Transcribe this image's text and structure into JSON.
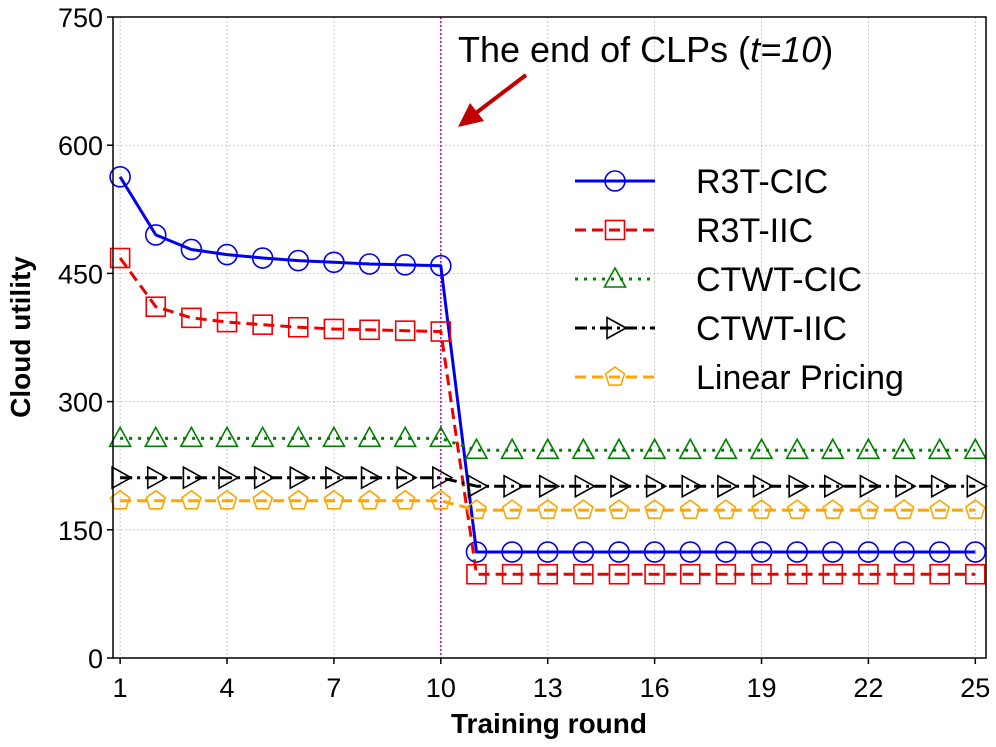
{
  "chart_data": {
    "type": "line",
    "title": "",
    "xlabel": "Training round",
    "ylabel": "Cloud utility",
    "xlim": [
      0.8,
      25.3
    ],
    "ylim": [
      0,
      750
    ],
    "xticks": [
      1,
      4,
      7,
      10,
      13,
      16,
      19,
      22,
      25
    ],
    "yticks": [
      0,
      150,
      300,
      450,
      600,
      750
    ],
    "grid": true,
    "legend_position": "right",
    "x": [
      1,
      2,
      3,
      4,
      5,
      6,
      7,
      8,
      9,
      10,
      11,
      12,
      13,
      14,
      15,
      16,
      17,
      18,
      19,
      20,
      21,
      22,
      23,
      24,
      25
    ],
    "series": [
      {
        "name": "R3T-CIC",
        "color": "#0000ee",
        "dash": "solid",
        "marker": "circle",
        "values": [
          563,
          495,
          478,
          472,
          468,
          465,
          463,
          461,
          460,
          459,
          124,
          124,
          124,
          124,
          124,
          124,
          124,
          124,
          124,
          124,
          124,
          124,
          124,
          124,
          124
        ]
      },
      {
        "name": "R3T-IIC",
        "color": "#ee0000",
        "dash": "dashed",
        "marker": "square",
        "values": [
          468,
          411,
          398,
          393,
          390,
          387,
          385,
          384,
          383,
          382,
          98,
          98,
          98,
          98,
          98,
          98,
          98,
          98,
          98,
          98,
          98,
          98,
          98,
          98,
          98
        ]
      },
      {
        "name": "CTWT-CIC",
        "color": "#008000",
        "dash": "dotted",
        "marker": "triangle-up",
        "values": [
          257,
          257,
          257,
          257,
          257,
          257,
          257,
          257,
          257,
          257,
          243,
          243,
          243,
          243,
          243,
          243,
          243,
          243,
          243,
          243,
          243,
          243,
          243,
          243,
          243
        ]
      },
      {
        "name": "CTWT-IIC",
        "color": "#000000",
        "dash": "dashdot",
        "marker": "triangle-right",
        "values": [
          211,
          211,
          211,
          211,
          211,
          211,
          211,
          211,
          211,
          211,
          201,
          201,
          201,
          201,
          201,
          201,
          201,
          201,
          201,
          201,
          201,
          201,
          201,
          201,
          201
        ]
      },
      {
        "name": "Linear Pricing",
        "color": "#ffa500",
        "dash": "dashed",
        "marker": "pentagon",
        "values": [
          184,
          184,
          184,
          184,
          184,
          184,
          184,
          184,
          184,
          184,
          173,
          173,
          173,
          173,
          173,
          173,
          173,
          173,
          173,
          173,
          173,
          173,
          173,
          173,
          173
        ]
      }
    ],
    "vline": {
      "x": 10,
      "color": "#cc00cc"
    },
    "annotation": {
      "prefix": "The end of CLPs (",
      "italic": "t=10",
      "suffix": ")",
      "arrow_color": "#c00000"
    }
  }
}
